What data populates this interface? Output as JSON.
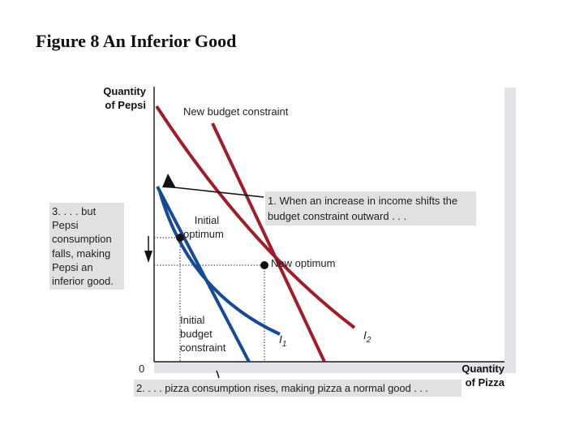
{
  "title": "Figure 8 An Inferior Good",
  "axes": {
    "y_label_line1": "Quantity",
    "y_label_line2": "of Pepsi",
    "x_label_line1": "Quantity",
    "x_label_line2": "of Pizza",
    "origin": "0"
  },
  "labels": {
    "new_budget": "New budget constraint",
    "initial_optimum_line1": "Initial",
    "initial_optimum_line2": "optimum",
    "new_optimum": "New optimum",
    "initial_budget_line1": "Initial",
    "initial_budget_line2": "budget",
    "initial_budget_line3": "constraint",
    "i1_base": "I",
    "i1_sub": "1",
    "i2_base": "I",
    "i2_sub": "2"
  },
  "annotations": {
    "note1": "1. When an increase in income shifts the budget constraint outward . . .",
    "note2_lines": [
      "3. . . . but",
      "Pepsi",
      "consumption",
      "falls, making",
      "Pepsi an",
      "inferior good."
    ],
    "note3": "2. . . . pizza consumption rises, making pizza a normal good . . ."
  },
  "colors": {
    "budget_line": "#a01c2a",
    "indifference_initial": "#174a96",
    "indifference_new": "#a01c2a",
    "callout_bg": "#e1e1e3"
  }
}
